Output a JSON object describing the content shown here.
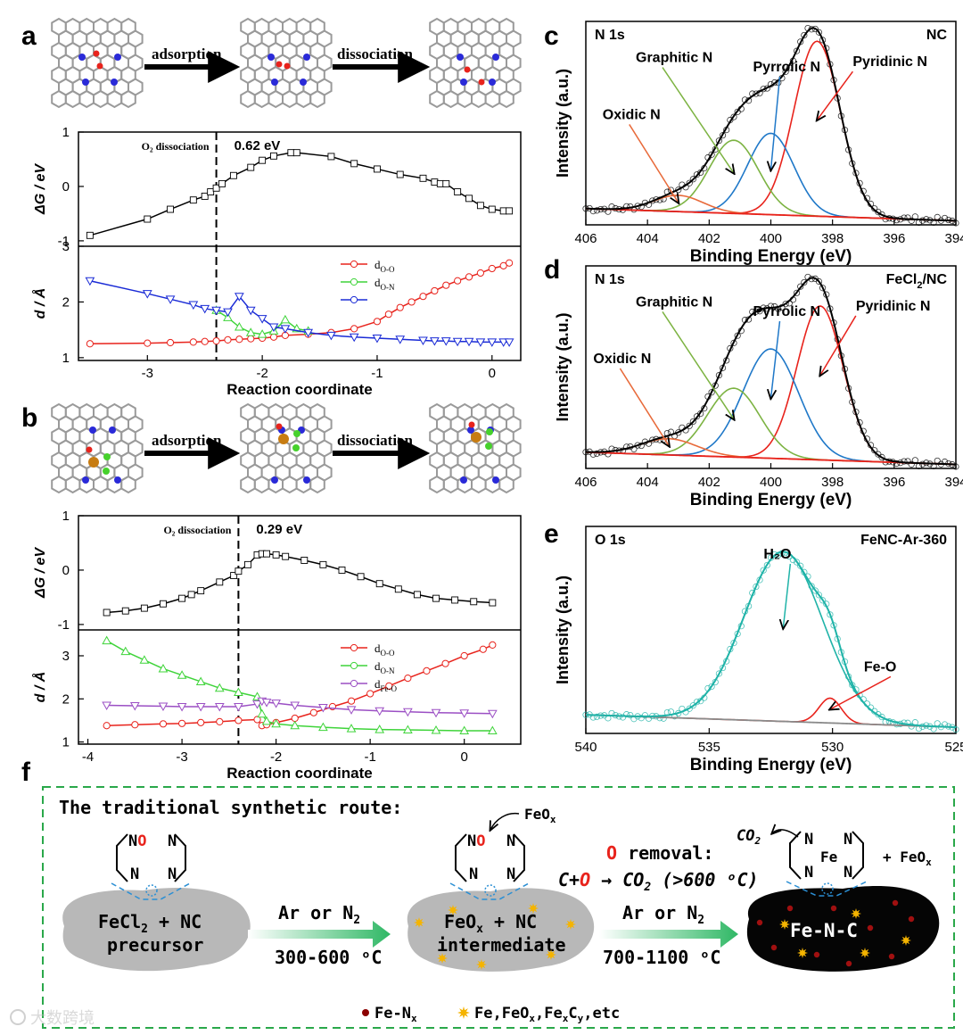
{
  "panels": {
    "a": "a",
    "b": "b",
    "c": "c",
    "d": "d",
    "e": "e",
    "f": "f"
  },
  "schematic": {
    "adsorption": "adsorption",
    "dissociation": "dissociation"
  },
  "chart_data": [
    {
      "id": "a-energy",
      "type": "line",
      "ylabel": "ΔG / eV",
      "xlim": [
        -3.6,
        0.25
      ],
      "ylim": [
        -1.1,
        1.0
      ],
      "yticks": [
        "-1",
        "0",
        "1"
      ],
      "ytick_values": [
        -1,
        0,
        1
      ],
      "annotation": "O₂ dissociation",
      "barrier_label": "0.62 eV",
      "dashed_x": -2.4,
      "x": [
        -3.5,
        -3.0,
        -2.8,
        -2.6,
        -2.5,
        -2.45,
        -2.4,
        -2.35,
        -2.25,
        -2.1,
        -2.0,
        -1.9,
        -1.75,
        -1.7,
        -1.4,
        -1.2,
        -1.0,
        -0.8,
        -0.6,
        -0.5,
        -0.45,
        -0.4,
        -0.3,
        -0.2,
        -0.1,
        0.0,
        0.1,
        0.15
      ],
      "y": [
        -0.9,
        -0.6,
        -0.42,
        -0.25,
        -0.18,
        -0.1,
        -0.03,
        0.05,
        0.2,
        0.35,
        0.48,
        0.56,
        0.62,
        0.62,
        0.55,
        0.42,
        0.32,
        0.22,
        0.15,
        0.08,
        0.05,
        0.05,
        -0.1,
        -0.22,
        -0.35,
        -0.42,
        -0.45,
        -0.45
      ]
    },
    {
      "id": "a-distance",
      "type": "line",
      "xlabel": "Reaction coordinate",
      "ylabel": "d / Å",
      "xlim": [
        -3.6,
        0.25
      ],
      "ylim": [
        0.95,
        3.0
      ],
      "xticks": [
        "-3",
        "-2",
        "-1",
        "0"
      ],
      "xtick_values": [
        -3,
        -2,
        -1,
        0
      ],
      "yticks": [
        "1",
        "2",
        "3"
      ],
      "ytick_values": [
        1,
        2,
        3
      ],
      "legend": [
        "d",
        "d"
      ],
      "legend_subs": [
        "O-O",
        "O-N"
      ],
      "series": [
        {
          "name": "dO-O",
          "color": "#e8231c",
          "marker": "circle",
          "x": [
            -3.5,
            -3.0,
            -2.8,
            -2.6,
            -2.5,
            -2.4,
            -2.3,
            -2.2,
            -2.1,
            -2.0,
            -1.9,
            -1.8,
            -1.6,
            -1.4,
            -1.2,
            -1.0,
            -0.9,
            -0.8,
            -0.7,
            -0.6,
            -0.5,
            -0.4,
            -0.3,
            -0.2,
            -0.1,
            0.0,
            0.1,
            0.15
          ],
          "y": [
            1.25,
            1.26,
            1.27,
            1.28,
            1.29,
            1.3,
            1.32,
            1.33,
            1.34,
            1.35,
            1.37,
            1.4,
            1.42,
            1.45,
            1.52,
            1.65,
            1.78,
            1.9,
            2.0,
            2.1,
            2.2,
            2.3,
            2.38,
            2.45,
            2.52,
            2.6,
            2.65,
            2.7
          ]
        },
        {
          "name": "dO-N (green)",
          "color": "#3fd43a",
          "marker": "triangle",
          "x": [
            -2.4,
            -2.3,
            -2.2,
            -2.1,
            -2.0,
            -1.9,
            -1.8,
            -1.7,
            -1.6
          ],
          "y": [
            1.85,
            1.72,
            1.55,
            1.45,
            1.42,
            1.48,
            1.68,
            1.52,
            1.48
          ]
        },
        {
          "name": "dO-N",
          "color": "#1a2bd6",
          "marker": "triangle-down",
          "x": [
            -3.5,
            -3.0,
            -2.8,
            -2.6,
            -2.5,
            -2.4,
            -2.3,
            -2.2,
            -2.1,
            -2.0,
            -1.9,
            -1.8,
            -1.6,
            -1.4,
            -1.2,
            -1.0,
            -0.8,
            -0.6,
            -0.5,
            -0.4,
            -0.3,
            -0.2,
            -0.1,
            0.0,
            0.1,
            0.15
          ],
          "y": [
            2.38,
            2.15,
            2.05,
            1.95,
            1.88,
            1.85,
            1.82,
            2.1,
            1.85,
            1.7,
            1.55,
            1.52,
            1.45,
            1.4,
            1.37,
            1.35,
            1.33,
            1.31,
            1.3,
            1.3,
            1.29,
            1.29,
            1.28,
            1.28,
            1.28,
            1.28
          ]
        }
      ]
    },
    {
      "id": "b-energy",
      "type": "line",
      "ylabel": "ΔG / eV",
      "xlim": [
        -4.1,
        0.6
      ],
      "ylim": [
        -1.1,
        1.0
      ],
      "yticks": [
        "-1",
        "0",
        "1"
      ],
      "ytick_values": [
        -1,
        0,
        1
      ],
      "annotation": "O₂ dissociation",
      "barrier_label": "0.29 eV",
      "dashed_x": -2.4,
      "x": [
        -3.8,
        -3.6,
        -3.4,
        -3.2,
        -3.0,
        -2.9,
        -2.8,
        -2.6,
        -2.45,
        -2.4,
        -2.3,
        -2.2,
        -2.15,
        -2.1,
        -2.0,
        -1.9,
        -1.7,
        -1.5,
        -1.3,
        -1.1,
        -0.9,
        -0.7,
        -0.5,
        -0.3,
        -0.1,
        0.1,
        0.3
      ],
      "y": [
        -0.78,
        -0.75,
        -0.7,
        -0.62,
        -0.52,
        -0.45,
        -0.38,
        -0.22,
        -0.1,
        -0.02,
        0.1,
        0.28,
        0.3,
        0.3,
        0.28,
        0.25,
        0.18,
        0.1,
        0.0,
        -0.12,
        -0.25,
        -0.35,
        -0.45,
        -0.52,
        -0.55,
        -0.58,
        -0.6
      ]
    },
    {
      "id": "b-distance",
      "type": "line",
      "xlabel": "Reaction coordinate",
      "ylabel": "d / Å",
      "xlim": [
        -4.1,
        0.6
      ],
      "ylim": [
        0.95,
        3.6
      ],
      "xticks": [
        "-4",
        "-3",
        "-2",
        "-1",
        "0"
      ],
      "xtick_values": [
        -4,
        -3,
        -2,
        -1,
        0
      ],
      "yticks": [
        "1",
        "2",
        "3"
      ],
      "ytick_values": [
        1,
        2,
        3
      ],
      "legend": [
        "d",
        "d",
        "d"
      ],
      "legend_subs": [
        "O-O",
        "O-N",
        "Fe-O"
      ],
      "series": [
        {
          "name": "dO-O",
          "color": "#e8231c",
          "marker": "circle",
          "x": [
            -3.8,
            -3.5,
            -3.2,
            -3.0,
            -2.8,
            -2.6,
            -2.4,
            -2.2,
            -2.15,
            -2.1,
            -2.0,
            -1.8,
            -1.6,
            -1.4,
            -1.2,
            -1.0,
            -0.8,
            -0.6,
            -0.4,
            -0.2,
            0.0,
            0.2,
            0.3
          ],
          "y": [
            1.38,
            1.4,
            1.42,
            1.43,
            1.45,
            1.47,
            1.5,
            1.52,
            1.38,
            1.4,
            1.45,
            1.55,
            1.68,
            1.82,
            1.95,
            2.12,
            2.3,
            2.48,
            2.65,
            2.82,
            3.0,
            3.15,
            3.25
          ]
        },
        {
          "name": "dO-N",
          "color": "#3fd43a",
          "marker": "triangle",
          "x": [
            -3.8,
            -3.6,
            -3.4,
            -3.2,
            -3.0,
            -2.8,
            -2.6,
            -2.4,
            -2.2,
            -2.15,
            -2.1,
            -2.0,
            -1.8,
            -1.5,
            -1.2,
            -0.9,
            -0.6,
            -0.3,
            0.0,
            0.3
          ],
          "y": [
            3.35,
            3.1,
            2.9,
            2.7,
            2.55,
            2.4,
            2.25,
            2.15,
            2.05,
            1.65,
            1.48,
            1.42,
            1.38,
            1.34,
            1.31,
            1.29,
            1.28,
            1.27,
            1.26,
            1.26
          ]
        },
        {
          "name": "dFe-O",
          "color": "#9b4fc4",
          "marker": "triangle-down",
          "x": [
            -3.8,
            -3.5,
            -3.2,
            -3.0,
            -2.8,
            -2.6,
            -2.4,
            -2.2,
            -2.15,
            -2.1,
            -2.0,
            -1.8,
            -1.5,
            -1.2,
            -0.9,
            -0.6,
            -0.3,
            0.0,
            0.3
          ],
          "y": [
            1.85,
            1.84,
            1.83,
            1.82,
            1.82,
            1.82,
            1.82,
            1.88,
            1.95,
            1.92,
            1.9,
            1.85,
            1.8,
            1.75,
            1.72,
            1.7,
            1.68,
            1.67,
            1.66
          ]
        }
      ]
    },
    {
      "id": "c",
      "type": "line",
      "title": "N 1s",
      "sample": "NC",
      "xlabel": "Binding Energy (eV)",
      "ylabel": "Intensity (a.u.)",
      "xlim": [
        406,
        394
      ],
      "ylim": [
        0,
        1.0
      ],
      "xticks": [
        "406",
        "404",
        "402",
        "400",
        "398",
        "396",
        "394"
      ],
      "xtick_values": [
        406,
        404,
        402,
        400,
        398,
        396,
        394
      ],
      "peaks": [
        {
          "label": "Pyridinic N",
          "center": 398.5,
          "height": 0.86,
          "width": 0.75,
          "color": "#e8231c"
        },
        {
          "label": "Pyrrolic N",
          "center": 400.0,
          "height": 0.4,
          "width": 0.75,
          "color": "#1f78c8"
        },
        {
          "label": "Graphitic N",
          "center": 401.2,
          "height": 0.36,
          "width": 0.8,
          "color": "#7cb342"
        },
        {
          "label": "Oxidic N",
          "center": 403.0,
          "height": 0.08,
          "width": 0.8,
          "color": "#e86a3a"
        }
      ],
      "background": {
        "start": 406,
        "start_value": 0.08,
        "end": 394,
        "end_value": 0.02,
        "color": "#e8231c"
      }
    },
    {
      "id": "d",
      "type": "line",
      "title": "N 1s",
      "sample": "FeCl",
      "sample_sub": "2",
      "sample_tail": "/NC",
      "xlabel": "Binding Energy (eV)",
      "ylabel": "Intensity (a.u.)",
      "xlim": [
        406,
        394
      ],
      "ylim": [
        0,
        1.0
      ],
      "xticks": [
        "406",
        "404",
        "402",
        "400",
        "398",
        "396",
        "394"
      ],
      "xtick_values": [
        406,
        404,
        402,
        400,
        398,
        396,
        394
      ],
      "peaks": [
        {
          "label": "Pyridinic N",
          "center": 398.4,
          "height": 0.76,
          "width": 0.75,
          "color": "#e8231c"
        },
        {
          "label": "Pyrrolic N",
          "center": 400.0,
          "height": 0.54,
          "width": 0.9,
          "color": "#1f78c8"
        },
        {
          "label": "Graphitic N",
          "center": 401.2,
          "height": 0.34,
          "width": 0.85,
          "color": "#7cb342"
        },
        {
          "label": "Oxidic N",
          "center": 403.3,
          "height": 0.08,
          "width": 0.9,
          "color": "#e86a3a"
        }
      ],
      "background": {
        "start": 406,
        "start_value": 0.08,
        "end": 394,
        "end_value": 0.02,
        "color": "#e8231c"
      }
    },
    {
      "id": "e",
      "type": "line",
      "title": "O 1s",
      "sample": "FeNC-Ar-360",
      "xlabel": "Binding Energy (eV)",
      "ylabel": "Intensity (a.u.)",
      "xlim": [
        540,
        525
      ],
      "ylim": [
        0,
        1.0
      ],
      "xticks": [
        "540",
        "535",
        "530",
        "525"
      ],
      "xtick_values": [
        540,
        535,
        530,
        525
      ],
      "peaks": [
        {
          "label": "H₂O",
          "center": 532.0,
          "height": 0.82,
          "width": 1.6,
          "color": "#1fb3a8"
        },
        {
          "label": "Fe-O",
          "center": 530.1,
          "height": 0.12,
          "width": 0.45,
          "color": "#e8231c"
        }
      ],
      "background": {
        "start": 540,
        "start_value": 0.09,
        "end": 525,
        "end_value": 0.03,
        "color": "#8a8a8a"
      }
    }
  ],
  "scheme": {
    "title": "The traditional synthetic route:",
    "blob1": [
      "FeCl",
      "2",
      " + NC"
    ],
    "blob1_line2": "precursor",
    "blob2": [
      "FeO",
      "x",
      " + NC"
    ],
    "blob2_line2": "intermediate",
    "blob3": "Fe-N-C",
    "arrow1_top": [
      "Ar or N",
      "2"
    ],
    "arrow1_bottom": "300-600 ᵒC",
    "arrow2_top": [
      "Ar or N",
      "2"
    ],
    "arrow2_bottom": "700-1100 ᵒC",
    "feox_label": [
      "FeO",
      "x"
    ],
    "removal_title": "O removal:",
    "removal_eq": [
      "C+",
      "O",
      " → CO",
      "2",
      " (>600 ᵒC)"
    ],
    "co2_label": [
      "CO",
      "2"
    ],
    "plus_feox": [
      "+ FeO",
      "x"
    ],
    "no_label": [
      "N",
      "O"
    ],
    "n_label": "N",
    "fe_label": "Fe",
    "legend_fen": [
      "Fe-N",
      "x"
    ],
    "legend_species": [
      "Fe,FeO",
      "x",
      ",Fe",
      "x",
      "C",
      "y",
      ",etc"
    ]
  },
  "watermark": "大数跨境"
}
